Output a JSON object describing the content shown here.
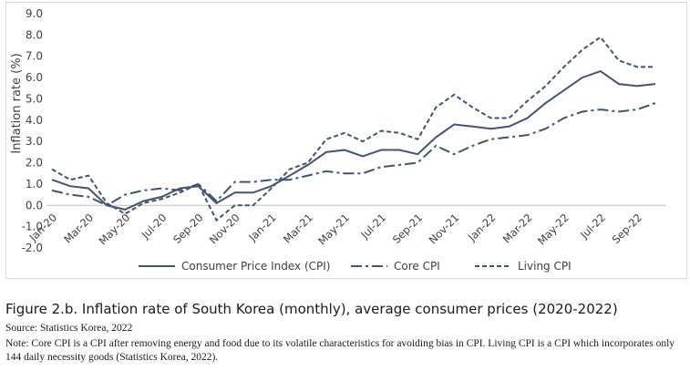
{
  "figure": {
    "caption": "Figure 2.b. Inflation rate of South Korea (monthly), average consumer prices (2020-2022)",
    "source": "Source: Statistics Korea, 2022",
    "note": "Note: Core CPI is a CPI after removing energy and food due to its volatile characteristics for avoiding bias in CPI. Living CPI is a CPI which incorporates only 144 daily necessity goods (Statistics Korea, 2022)."
  },
  "chart_data": {
    "type": "line",
    "title": "",
    "xlabel": "",
    "ylabel": "Inflation rate (%)",
    "ylim": [
      -2.0,
      9.0
    ],
    "yticks": [
      "-2.0",
      "-1.0",
      "0.0",
      "1.0",
      "2.0",
      "3.0",
      "4.0",
      "5.0",
      "6.0",
      "7.0",
      "8.0",
      "9.0"
    ],
    "xtick_labels": [
      "Jan-20",
      "Mar-20",
      "May-20",
      "Jul-20",
      "Sep-20",
      "Nov-20",
      "Jan-21",
      "Mar-21",
      "May-21",
      "Jul-21",
      "Sep-21",
      "Nov-21",
      "Jan-22",
      "Mar-22",
      "May-22",
      "Jul-22",
      "Sep-22"
    ],
    "x": [
      "Jan-20",
      "Feb-20",
      "Mar-20",
      "Apr-20",
      "May-20",
      "Jun-20",
      "Jul-20",
      "Aug-20",
      "Sep-20",
      "Oct-20",
      "Nov-20",
      "Dec-20",
      "Jan-21",
      "Feb-21",
      "Mar-21",
      "Apr-21",
      "May-21",
      "Jun-21",
      "Jul-21",
      "Aug-21",
      "Sep-21",
      "Oct-21",
      "Nov-21",
      "Dec-21",
      "Jan-22",
      "Feb-22",
      "Mar-22",
      "Apr-22",
      "May-22",
      "Jun-22",
      "Jul-22",
      "Aug-22",
      "Sep-22",
      "Oct-22"
    ],
    "series": [
      {
        "name": "Consumer Price Index (CPI)",
        "style": "solid",
        "values": [
          1.2,
          0.9,
          0.8,
          0.0,
          -0.2,
          0.2,
          0.4,
          0.8,
          0.9,
          0.1,
          0.6,
          0.6,
          0.9,
          1.4,
          1.9,
          2.5,
          2.6,
          2.3,
          2.6,
          2.6,
          2.4,
          3.2,
          3.8,
          3.7,
          3.6,
          3.7,
          4.1,
          4.8,
          5.4,
          6.0,
          6.3,
          5.7,
          5.6,
          5.7
        ]
      },
      {
        "name": "Core CPI",
        "style": "dashdot",
        "values": [
          0.7,
          0.5,
          0.4,
          0.0,
          0.5,
          0.7,
          0.8,
          0.7,
          1.0,
          0.2,
          1.1,
          1.1,
          1.2,
          1.2,
          1.4,
          1.6,
          1.5,
          1.5,
          1.8,
          1.9,
          2.0,
          2.8,
          2.4,
          2.8,
          3.1,
          3.2,
          3.3,
          3.6,
          4.1,
          4.4,
          4.5,
          4.4,
          4.5,
          4.8
        ]
      },
      {
        "name": "Living CPI",
        "style": "dashed",
        "values": [
          1.7,
          1.2,
          1.4,
          0.1,
          -0.4,
          0.1,
          0.3,
          0.6,
          1.0,
          -0.7,
          0.0,
          0.0,
          0.8,
          1.7,
          2.0,
          3.1,
          3.4,
          3.0,
          3.5,
          3.4,
          3.1,
          4.6,
          5.2,
          4.6,
          4.1,
          4.1,
          4.9,
          5.6,
          6.5,
          7.3,
          7.9,
          6.8,
          6.5,
          6.5
        ]
      }
    ],
    "grid": false,
    "legend_position": "bottom"
  },
  "colors": {
    "line": "#44546a",
    "text": "#404040",
    "axis": "#bfbfbf"
  }
}
